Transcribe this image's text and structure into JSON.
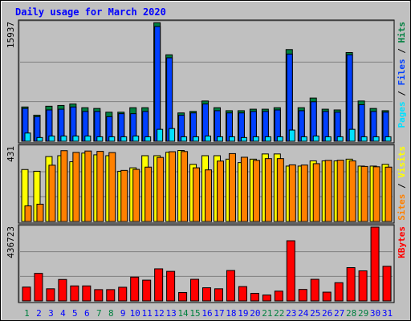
{
  "chart_data": {
    "type": "bar",
    "title": "Daily usage for March 2020",
    "categories": [
      "1",
      "2",
      "3",
      "4",
      "5",
      "6",
      "7",
      "8",
      "9",
      "10",
      "11",
      "12",
      "13",
      "14",
      "15",
      "16",
      "17",
      "18",
      "19",
      "20",
      "21",
      "22",
      "23",
      "24",
      "25",
      "26",
      "27",
      "28",
      "29",
      "30",
      "31"
    ],
    "weekend_days": [
      1,
      7,
      8,
      14,
      15,
      21,
      22,
      28,
      29
    ],
    "colors": {
      "title": "#0000ff",
      "hits": "#008040",
      "files": "#0040ff",
      "pages": "#00e0ff",
      "visits": "#ffff00",
      "sites": "#ff8000",
      "kbytes": "#ff0000",
      "weekday_label": "#0000ff",
      "weekend_label": "#008040",
      "panel_bg": "#c0c0c0"
    },
    "panels": [
      {
        "id": "hits",
        "ymax_label": "15937",
        "ymax": 15937,
        "legend": [
          {
            "text": "Pages",
            "color": "#00e0ff"
          },
          {
            "text": " / ",
            "color": "#000000"
          },
          {
            "text": "Files",
            "color": "#0040ff"
          },
          {
            "text": " / ",
            "color": "#000000"
          },
          {
            "text": "Hits",
            "color": "#008040"
          }
        ],
        "series": [
          {
            "name": "Hits",
            "values": [
              4600,
              3500,
              4700,
              4800,
              5000,
              4500,
              4400,
              3900,
              3900,
              4500,
              4500,
              15900,
              11600,
              3800,
              4000,
              5400,
              4500,
              4100,
              4100,
              4300,
              4300,
              4500,
              12300,
              4500,
              5800,
              4300,
              4200,
              11900,
              5400,
              4400,
              4100
            ]
          },
          {
            "name": "Files",
            "values": [
              4400,
              3300,
              4200,
              4300,
              4600,
              4000,
              4000,
              3300,
              3700,
              3700,
              4000,
              15400,
              11200,
              3500,
              3800,
              5000,
              4100,
              3800,
              3800,
              4000,
              4000,
              4200,
              11700,
              4100,
              5300,
              4000,
              3900,
              11600,
              4900,
              4000,
              3900
            ]
          },
          {
            "name": "Pages",
            "values": [
              1100,
              500,
              700,
              700,
              700,
              700,
              600,
              600,
              600,
              700,
              600,
              1600,
              1700,
              600,
              600,
              700,
              600,
              600,
              500,
              600,
              600,
              600,
              1500,
              600,
              700,
              600,
              600,
              1600,
              600,
              600,
              600
            ]
          }
        ]
      },
      {
        "id": "visits",
        "ymax_label": "431",
        "ymax": 431,
        "legend": [
          {
            "text": "Sites",
            "color": "#ff8000"
          },
          {
            "text": " / ",
            "color": "#000000"
          },
          {
            "text": "Visits",
            "color": "#ffff00"
          }
        ],
        "series": [
          {
            "name": "Sites",
            "values": [
              90,
              100,
              325,
              409,
              399,
              407,
              405,
              398,
              295,
              301,
              314,
              370,
              403,
              404,
              310,
              298,
              349,
              392,
              371,
              353,
              363,
              363,
              327,
              326,
              334,
              353,
              354,
              350,
              318,
              316,
              314
            ]
          },
          {
            "name": "Visits",
            "values": [
              300,
              290,
              375,
              380,
              345,
              395,
              385,
              380,
              290,
              310,
              380,
              380,
              400,
              410,
              330,
              380,
              380,
              360,
              340,
              360,
              390,
              390,
              320,
              320,
              350,
              350,
              350,
              360,
              320,
              320,
              330
            ]
          }
        ]
      },
      {
        "id": "kbytes",
        "ymax_label": "436723",
        "ymax": 436723,
        "legend": [
          {
            "text": "KBytes",
            "color": "#ff0000"
          }
        ],
        "series": [
          {
            "name": "KBytes",
            "values": [
              82000,
              163000,
              72000,
              127000,
              89000,
              89000,
              67000,
              67000,
              81000,
              141000,
              123000,
              190000,
              175000,
              50000,
              128000,
              78000,
              72000,
              180000,
              85000,
              45000,
              35000,
              58000,
              356000,
              68000,
              128000,
              52000,
              108000,
              197000,
              178000,
              436723,
              205000
            ]
          }
        ]
      }
    ]
  }
}
